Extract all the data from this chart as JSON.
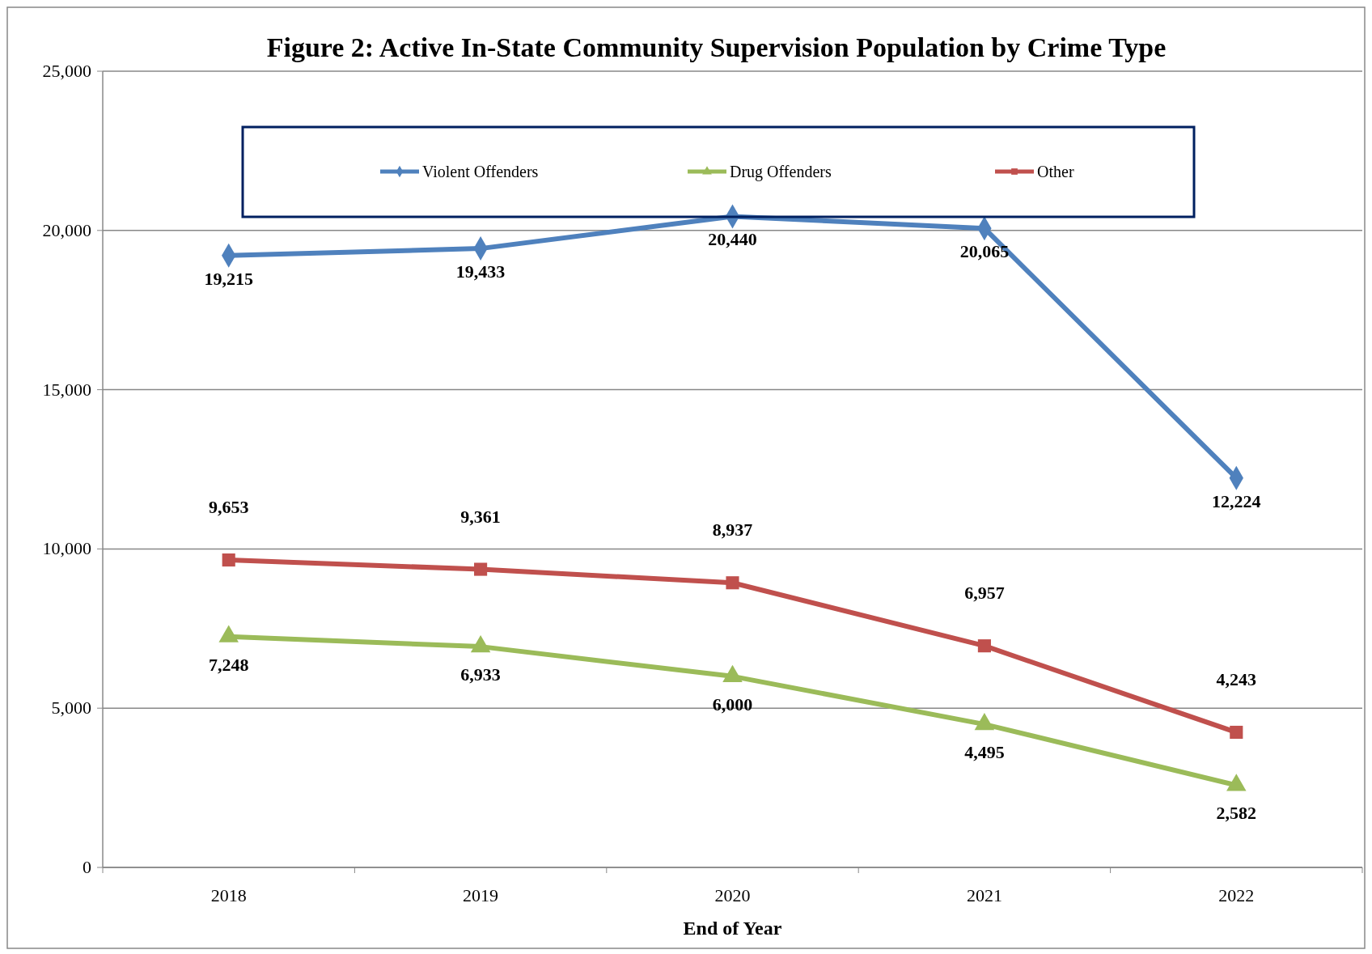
{
  "chart_data": {
    "type": "line",
    "title": "Figure 2:  Active In-State Community Supervision Population by Crime Type",
    "xlabel": "End of Year",
    "categories": [
      "2018",
      "2019",
      "2020",
      "2021",
      "2022"
    ],
    "series": [
      {
        "name": "Violent Offenders",
        "color": "#4f81bd",
        "marker": "diamond",
        "values": [
          19215,
          19433,
          20440,
          20065,
          12224
        ],
        "value_labels": [
          "19,215",
          "19,433",
          "20,440",
          "20,065",
          "12,224"
        ]
      },
      {
        "name": "Drug Offenders",
        "color": "#9bbb59",
        "marker": "triangle",
        "values": [
          7248,
          6933,
          6000,
          4495,
          2582
        ],
        "value_labels": [
          "7,248",
          "6,933",
          "6,000",
          "4,495",
          "2,582"
        ]
      },
      {
        "name": "Other",
        "color": "#c0504d",
        "marker": "square",
        "values": [
          9653,
          9361,
          8937,
          6957,
          4243
        ],
        "value_labels": [
          "9,653",
          "9,361",
          "8,937",
          "6,957",
          "4,243"
        ]
      }
    ],
    "ylim": [
      0,
      25000
    ],
    "yticks": [
      {
        "value": 0,
        "label": "0"
      },
      {
        "value": 5000,
        "label": "5,000"
      },
      {
        "value": 10000,
        "label": "10,000"
      },
      {
        "value": 15000,
        "label": "15,000"
      },
      {
        "value": 20000,
        "label": "20,000"
      },
      {
        "value": 25000,
        "label": "25,000"
      }
    ],
    "grid": "y",
    "legend": "top"
  }
}
